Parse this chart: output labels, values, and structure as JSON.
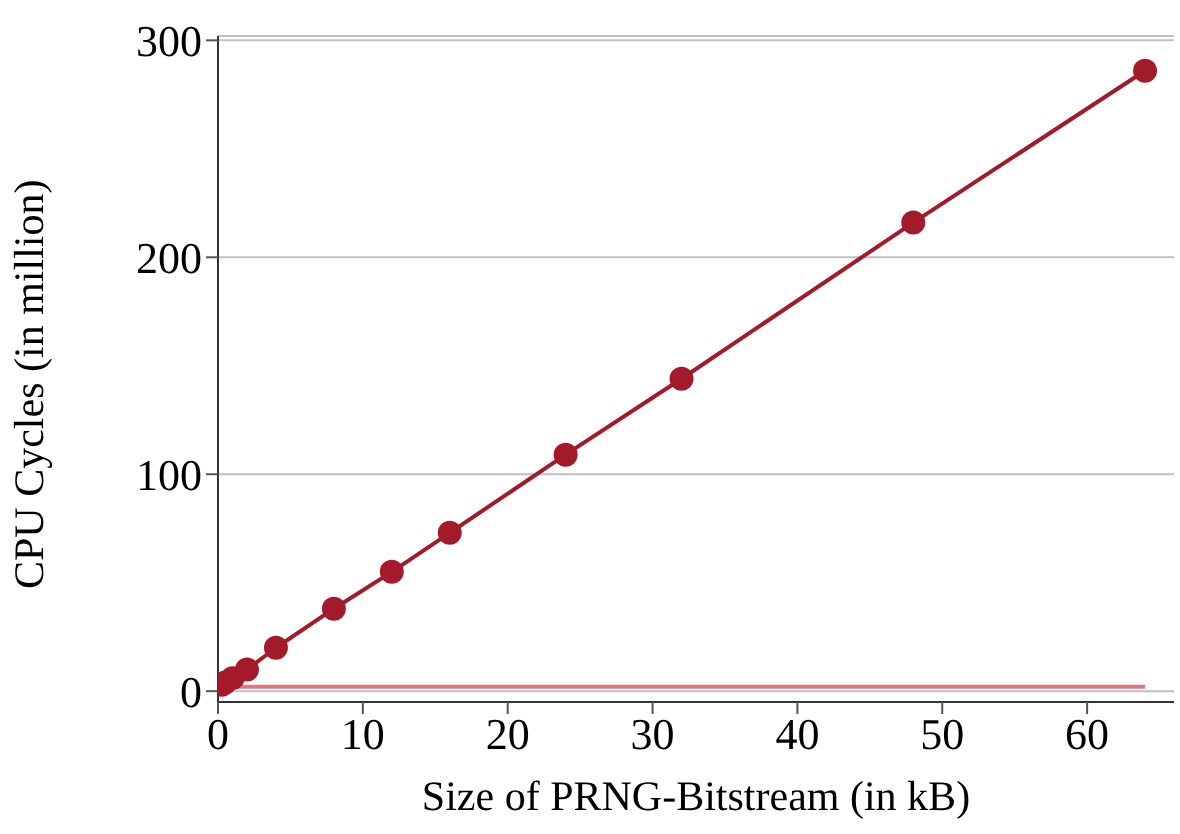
{
  "chart_data": {
    "type": "line",
    "xlabel": "Size of PRNG-Bitstream (in kB)",
    "ylabel": "CPU Cycles (in million)",
    "xlim": [
      0,
      66
    ],
    "xticks": [
      0,
      10,
      20,
      30,
      40,
      50,
      60
    ],
    "ylim": [
      -5,
      302
    ],
    "yticks": [
      0,
      100,
      200,
      300
    ],
    "grid": "y",
    "series": [
      {
        "color": "#a31b2a",
        "marker": "circle",
        "x": [
          0.25,
          0.5,
          1,
          2,
          4,
          8,
          12,
          16,
          24,
          32,
          48,
          64
        ],
        "values": [
          3,
          4,
          6,
          10,
          20,
          38,
          55,
          73,
          109,
          144,
          216,
          286
        ]
      },
      {
        "color": "#e07880",
        "marker": "none",
        "x": [
          0.25,
          0.5,
          1,
          2,
          4,
          8,
          12,
          16,
          24,
          32,
          48,
          64
        ],
        "values": [
          2,
          2,
          2,
          2,
          2,
          2,
          2,
          2,
          2,
          2,
          2,
          2
        ]
      }
    ]
  }
}
